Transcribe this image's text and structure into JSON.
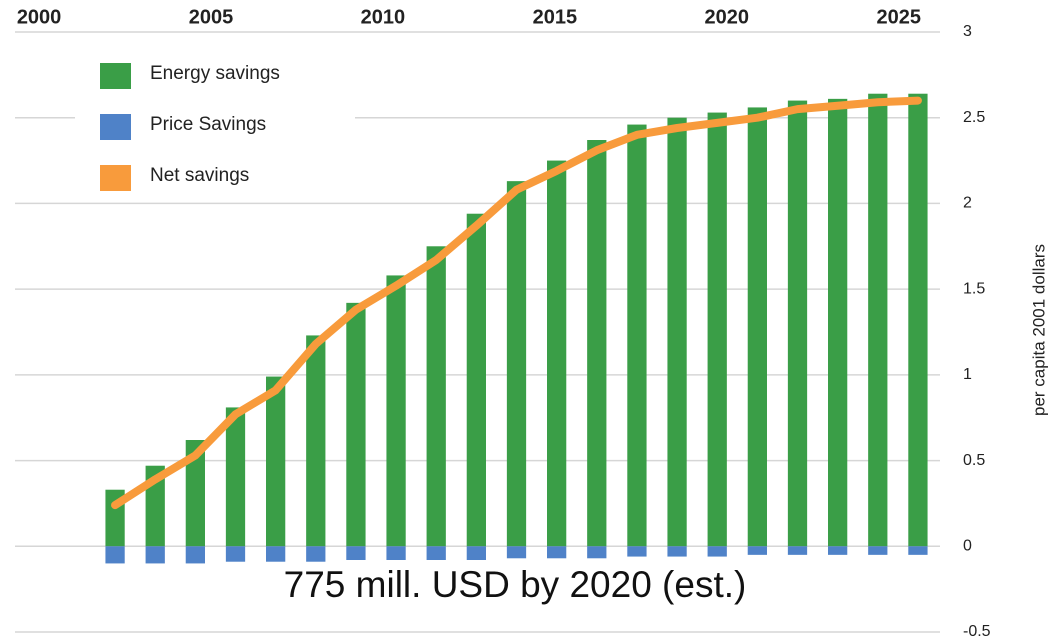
{
  "chart_data": {
    "type": "bar",
    "ylabel": "per capita 2001 dollars",
    "annotation": "775 mill. USD by 2020 (est.)",
    "xlim": [
      1999.3,
      2026.2
    ],
    "xticks": [
      2000,
      2005,
      2010,
      2015,
      2020,
      2025
    ],
    "ylim": [
      -0.5,
      3
    ],
    "yticks": [
      -0.5,
      0,
      0.5,
      1,
      1.5,
      2,
      2.5,
      3
    ],
    "grid": true,
    "legend": "upper left",
    "categories": [
      null,
      null,
      null,
      null,
      null,
      null,
      null,
      null,
      null,
      null,
      null,
      null,
      null,
      null,
      null,
      null,
      null,
      null,
      null,
      null,
      null
    ],
    "series": [
      {
        "name": "Energy savings",
        "type": "bar",
        "color": "#3a9e47",
        "values": [
          0.33,
          0.47,
          0.62,
          0.81,
          0.99,
          1.23,
          1.42,
          1.58,
          1.75,
          1.94,
          2.13,
          2.25,
          2.37,
          2.46,
          2.5,
          2.53,
          2.56,
          2.6,
          2.61,
          2.64,
          2.64
        ]
      },
      {
        "name": "Price Savings",
        "type": "bar",
        "color": "#4f82c8",
        "values": [
          -0.1,
          -0.1,
          -0.1,
          -0.09,
          -0.09,
          -0.09,
          -0.08,
          -0.08,
          -0.08,
          -0.08,
          -0.07,
          -0.07,
          -0.07,
          -0.06,
          -0.06,
          -0.06,
          -0.05,
          -0.05,
          -0.05,
          -0.05,
          -0.05
        ]
      },
      {
        "name": "Net savings",
        "type": "line",
        "color": "#f89b3c",
        "values": [
          0.24,
          0.39,
          0.53,
          0.77,
          0.91,
          1.18,
          1.38,
          1.52,
          1.67,
          1.87,
          2.08,
          2.19,
          2.31,
          2.4,
          2.44,
          2.47,
          2.5,
          2.55,
          2.57,
          2.59,
          2.6
        ]
      }
    ]
  }
}
